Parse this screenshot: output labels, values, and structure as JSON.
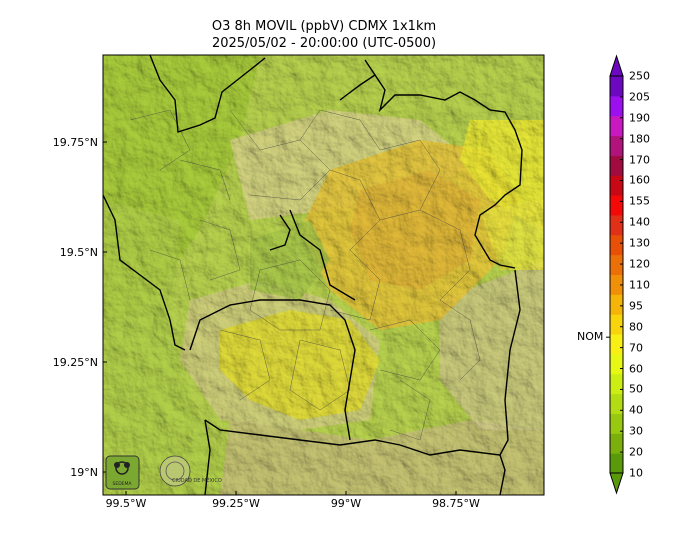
{
  "title_line1": "O3 8h MOVIL (ppbV) CDMX 1x1km",
  "title_line2": "2025/05/02 - 20:00:00 (UTC-0500)",
  "lat_labels": [
    "19.75°N",
    "19.5°N",
    "19.25°N",
    "19°N"
  ],
  "lon_labels": [
    "99.5°W",
    "99.25°W",
    "99°W",
    "98.75°W"
  ],
  "colorbar": {
    "labels": [
      "10",
      "20",
      "30",
      "40",
      "50",
      "60",
      "70",
      "80",
      "95",
      "110",
      "120",
      "130",
      "140",
      "155",
      "160",
      "170",
      "180",
      "190",
      "205",
      "250"
    ],
    "colors": [
      "#5a9a0a",
      "#7bb00c",
      "#98c810",
      "#b4dc14",
      "#ccee14",
      "#e6f814",
      "#f8f014",
      "#f8d40c",
      "#f4b408",
      "#f09008",
      "#ec7008",
      "#e85008",
      "#e03018",
      "#f40808",
      "#c80814",
      "#a00c40",
      "#b0147c",
      "#c818c0",
      "#9c10f0",
      "#6c08c0"
    ],
    "nom_label": "NOM",
    "nom_value": 70
  },
  "logos": {
    "logo1_text": "SEDEMA",
    "logo2_text": "CIUDAD DE MÉXICO"
  }
}
